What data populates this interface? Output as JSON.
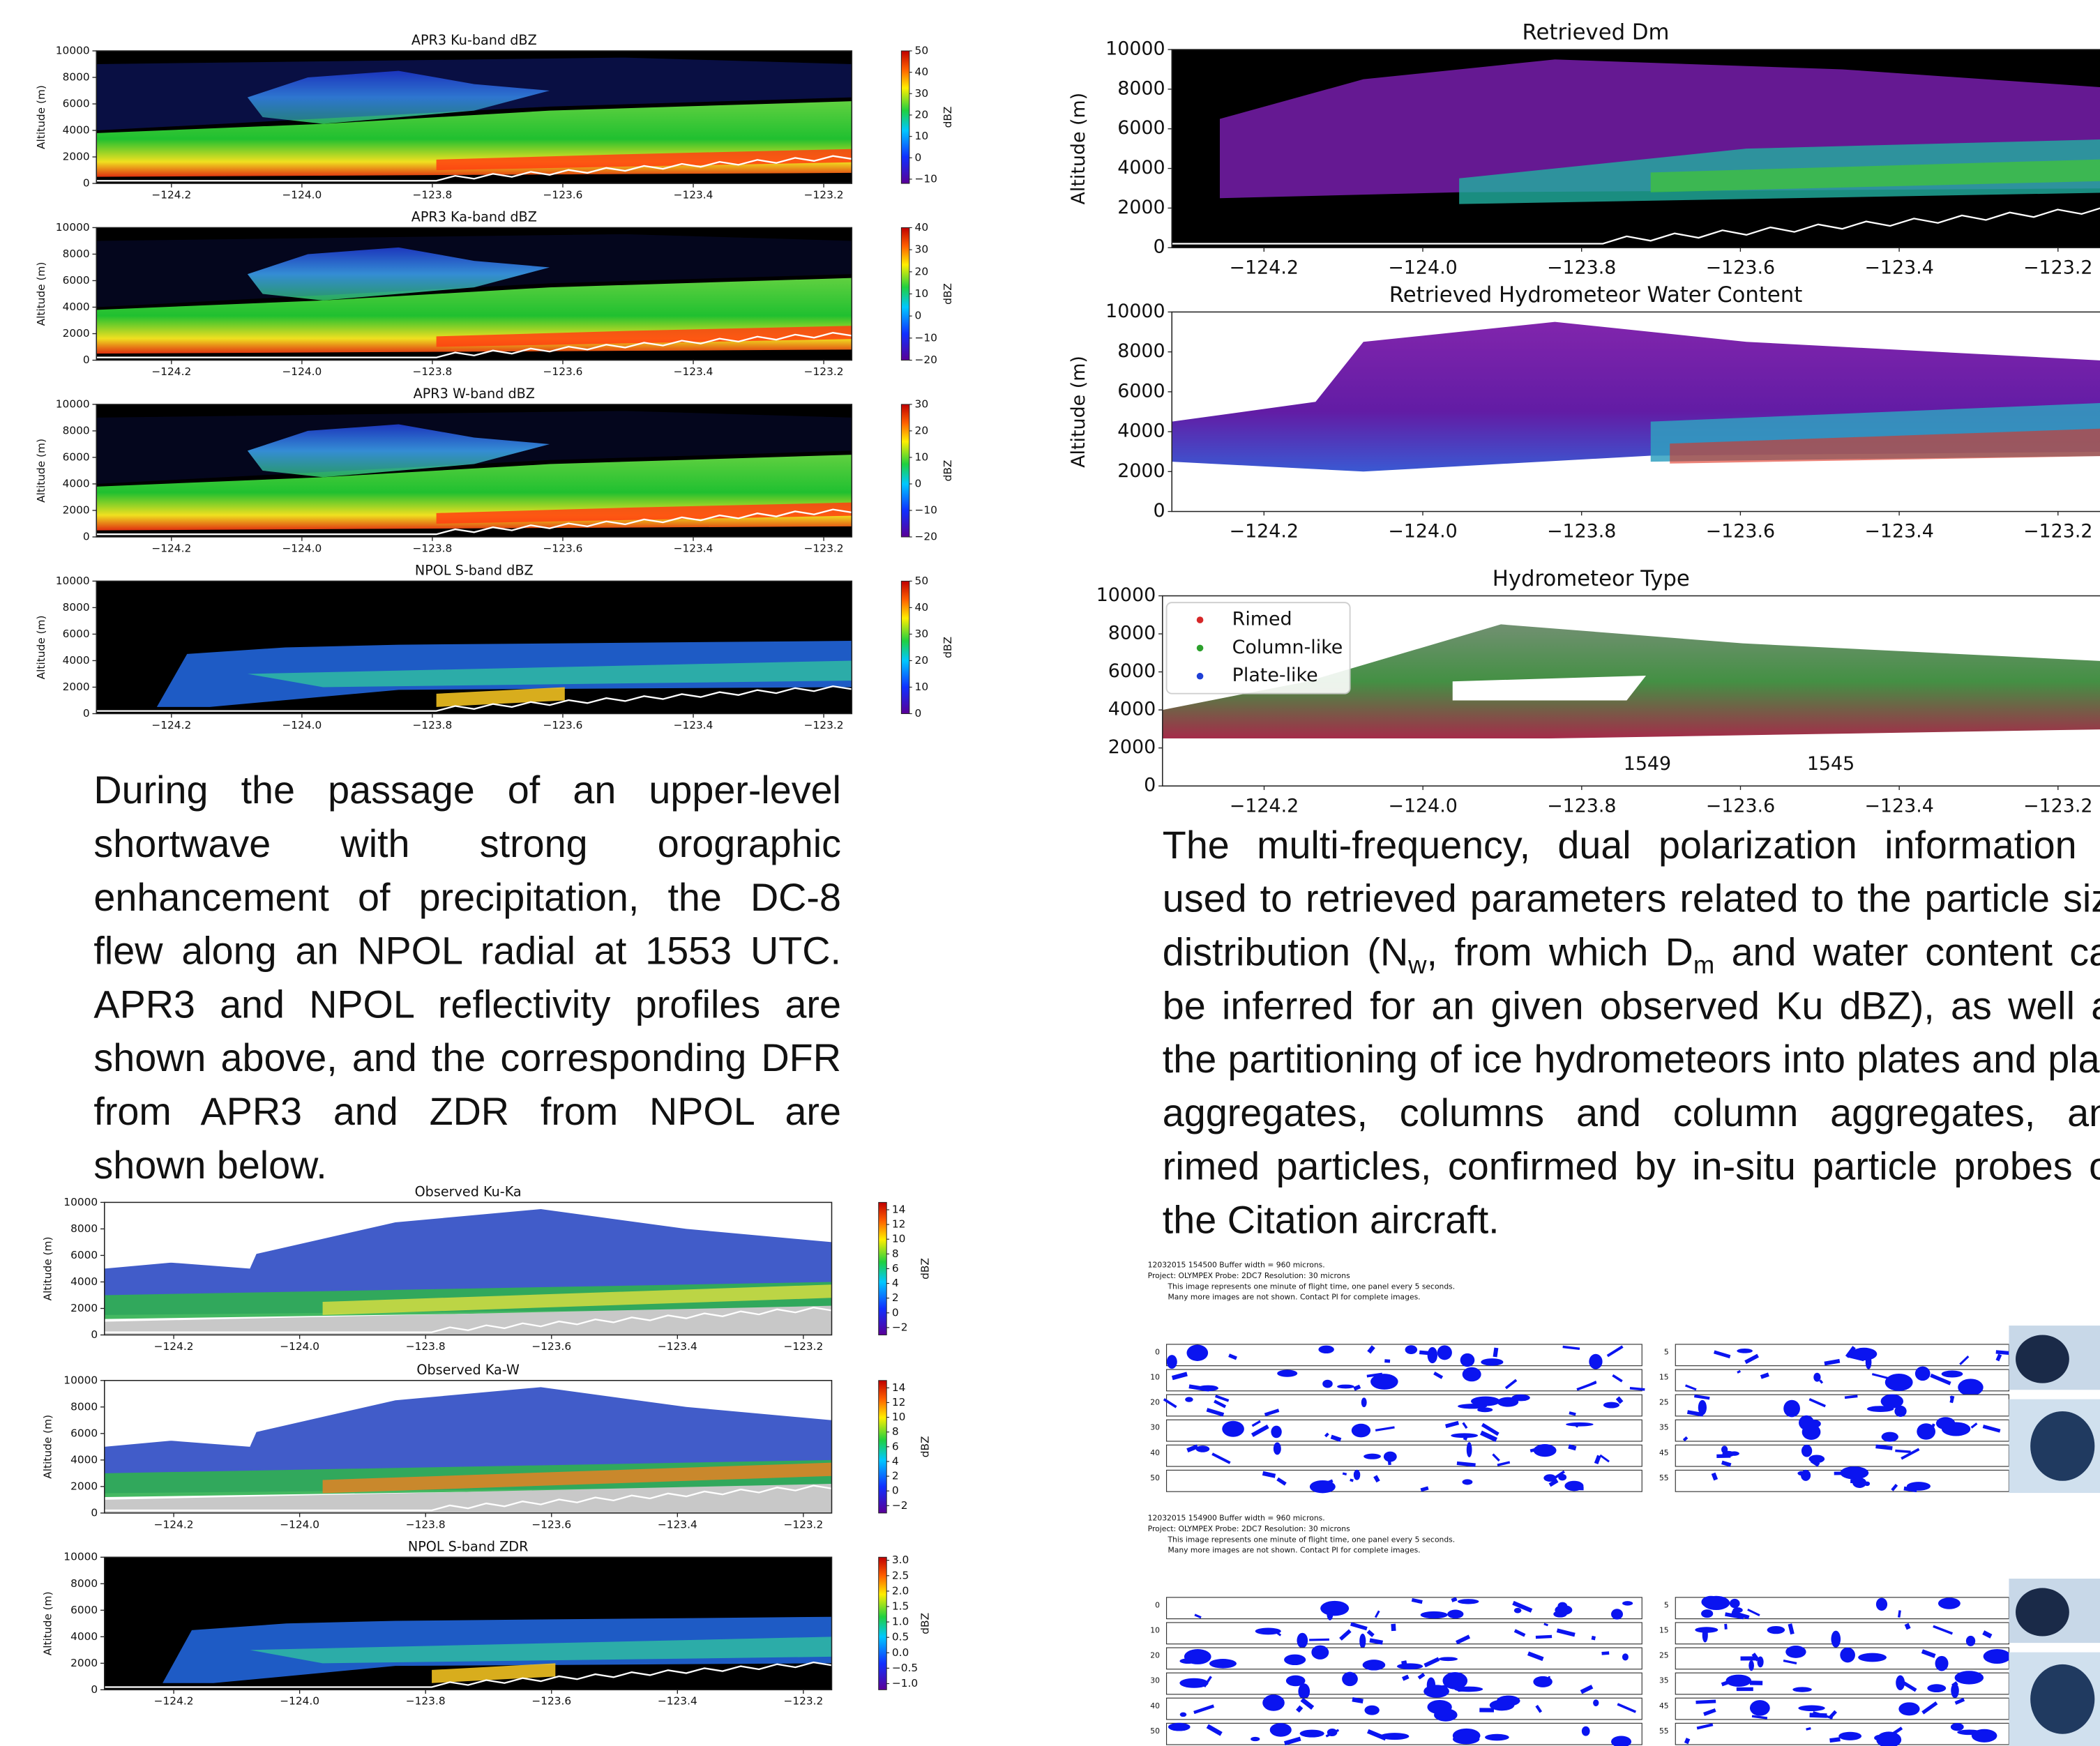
{
  "panels": [
    {
      "title": "APR3 Ku-band dBZ",
      "ylabel": "Altitude (m)",
      "ylim": [
        0,
        10000
      ],
      "yticks": [
        0,
        2000,
        4000,
        6000,
        8000,
        10000
      ],
      "xlim": [
        -124.315,
        -123.157
      ],
      "xticks": [
        {
          "value": -124.2,
          "label": "−124.2"
        },
        {
          "value": -124.0,
          "label": "−124.0"
        },
        {
          "value": -123.8,
          "label": "−123.8"
        },
        {
          "value": -123.6,
          "label": "−123.6"
        },
        {
          "value": -123.4,
          "label": "−123.4"
        },
        {
          "value": -123.2,
          "label": "−123.2"
        }
      ],
      "colorbar": {
        "label": "dBZ",
        "lim": [
          -12,
          50
        ],
        "ticks": [
          {
            "value": -10,
            "label": "−10"
          },
          0,
          10,
          20,
          30,
          40,
          50
        ]
      }
    },
    {
      "title": "APR3 Ka-band dBZ",
      "ylabel": "Altitude (m)",
      "ylim": [
        0,
        10000
      ],
      "yticks": [
        0,
        2000,
        4000,
        6000,
        8000,
        10000
      ],
      "xlim": [
        -124.315,
        -123.157
      ],
      "xticks": [
        {
          "value": -124.2,
          "label": "−124.2"
        },
        {
          "value": -124.0,
          "label": "−124.0"
        },
        {
          "value": -123.8,
          "label": "−123.8"
        },
        {
          "value": -123.6,
          "label": "−123.6"
        },
        {
          "value": -123.4,
          "label": "−123.4"
        },
        {
          "value": -123.2,
          "label": "−123.2"
        }
      ],
      "colorbar": {
        "label": "dBZ",
        "lim": [
          -20,
          40
        ],
        "ticks": [
          {
            "value": -20,
            "label": "−20"
          },
          {
            "value": -10,
            "label": "−10"
          },
          0,
          10,
          20,
          30,
          40
        ]
      }
    },
    {
      "title": "APR3 W-band dBZ",
      "ylabel": "Altitude (m)",
      "ylim": [
        0,
        10000
      ],
      "yticks": [
        0,
        2000,
        4000,
        6000,
        8000,
        10000
      ],
      "xlim": [
        -124.315,
        -123.157
      ],
      "xticks": [
        {
          "value": -124.2,
          "label": "−124.2"
        },
        {
          "value": -124.0,
          "label": "−124.0"
        },
        {
          "value": -123.8,
          "label": "−123.8"
        },
        {
          "value": -123.6,
          "label": "−123.6"
        },
        {
          "value": -123.4,
          "label": "−123.4"
        },
        {
          "value": -123.2,
          "label": "−123.2"
        }
      ],
      "colorbar": {
        "label": "dBZ",
        "lim": [
          -20,
          30
        ],
        "ticks": [
          {
            "value": -20,
            "label": "−20"
          },
          {
            "value": -10,
            "label": "−10"
          },
          0,
          10,
          20,
          30
        ]
      }
    },
    {
      "title": "NPOL S-band dBZ",
      "ylabel": "Altitude (m)",
      "ylim": [
        0,
        10000
      ],
      "yticks": [
        0,
        2000,
        4000,
        6000,
        8000,
        10000
      ],
      "xlim": [
        -124.315,
        -123.157
      ],
      "xticks": [
        {
          "value": -124.2,
          "label": "−124.2"
        },
        {
          "value": -124.0,
          "label": "−124.0"
        },
        {
          "value": -123.8,
          "label": "−123.8"
        },
        {
          "value": -123.6,
          "label": "−123.6"
        },
        {
          "value": -123.4,
          "label": "−123.4"
        },
        {
          "value": -123.2,
          "label": "−123.2"
        }
      ],
      "colorbar": {
        "label": "dBZ",
        "lim": [
          0,
          50
        ],
        "ticks": [
          0,
          10,
          20,
          30,
          40,
          50
        ]
      }
    },
    {
      "title": "Observed Ku-Ka",
      "ylabel": "Altitude (m)",
      "ylim": [
        0,
        10000
      ],
      "yticks": [
        0,
        2000,
        4000,
        6000,
        8000,
        10000
      ],
      "xlim": [
        -124.31,
        -123.155
      ],
      "xticks": [
        {
          "value": -124.2,
          "label": "−124.2"
        },
        {
          "value": -124.0,
          "label": "−124.0"
        },
        {
          "value": -123.8,
          "label": "−123.8"
        },
        {
          "value": -123.6,
          "label": "−123.6"
        },
        {
          "value": -123.4,
          "label": "−123.4"
        },
        {
          "value": -123.2,
          "label": "−123.2"
        }
      ],
      "colorbar": {
        "label": "dBZ",
        "lim": [
          -3,
          15
        ],
        "ticks": [
          {
            "value": -2,
            "label": "−2"
          },
          0,
          2,
          4,
          6,
          8,
          10,
          12,
          14
        ]
      }
    },
    {
      "title": "Observed Ka-W",
      "ylabel": "Altitude (m)",
      "ylim": [
        0,
        10000
      ],
      "yticks": [
        0,
        2000,
        4000,
        6000,
        8000,
        10000
      ],
      "xlim": [
        -124.31,
        -123.155
      ],
      "xticks": [
        {
          "value": -124.2,
          "label": "−124.2"
        },
        {
          "value": -124.0,
          "label": "−124.0"
        },
        {
          "value": -123.8,
          "label": "−123.8"
        },
        {
          "value": -123.6,
          "label": "−123.6"
        },
        {
          "value": -123.4,
          "label": "−123.4"
        },
        {
          "value": -123.2,
          "label": "−123.2"
        }
      ],
      "colorbar": {
        "label": "dBZ",
        "lim": [
          -3,
          15
        ],
        "ticks": [
          {
            "value": -2,
            "label": "−2"
          },
          0,
          2,
          4,
          6,
          8,
          10,
          12,
          14
        ]
      }
    },
    {
      "title": "NPOL S-band ZDR",
      "ylabel": "Altitude (m)",
      "ylim": [
        0,
        10000
      ],
      "yticks": [
        0,
        2000,
        4000,
        6000,
        8000,
        10000
      ],
      "xlim": [
        -124.31,
        -123.155
      ],
      "xticks": [
        {
          "value": -124.2,
          "label": "−124.2"
        },
        {
          "value": -124.0,
          "label": "−124.0"
        },
        {
          "value": -123.8,
          "label": "−123.8"
        },
        {
          "value": -123.6,
          "label": "−123.6"
        },
        {
          "value": -123.4,
          "label": "−123.4"
        },
        {
          "value": -123.2,
          "label": "−123.2"
        }
      ],
      "colorbar": {
        "label": "dBZ",
        "lim": [
          -1.2,
          3.1
        ],
        "ticks": [
          {
            "value": -1.0,
            "label": "−1.0"
          },
          {
            "value": -0.5,
            "label": "−0.5"
          },
          {
            "value": 0.0,
            "label": "0.0"
          },
          {
            "value": 0.5,
            "label": "0.5"
          },
          {
            "value": 1.0,
            "label": "1.0"
          },
          {
            "value": 1.5,
            "label": "1.5"
          },
          {
            "value": 2.0,
            "label": "2.0"
          },
          {
            "value": 2.5,
            "label": "2.5"
          },
          {
            "value": 3.0,
            "label": "3.0"
          }
        ]
      }
    },
    {
      "title": "Retrieved Dm",
      "ylabel": "Altitude (m)",
      "ylim": [
        0,
        10000
      ],
      "yticks": [
        0,
        2000,
        4000,
        6000,
        8000,
        10000
      ],
      "xlim": [
        -124.316,
        -123.11
      ],
      "xticks": [
        {
          "value": -124.2,
          "label": "−124.2"
        },
        {
          "value": -124.0,
          "label": "−124.0"
        },
        {
          "value": -123.8,
          "label": "−123.8"
        },
        {
          "value": -123.6,
          "label": "−123.6"
        },
        {
          "value": -123.4,
          "label": "−123.4"
        },
        {
          "value": -123.2,
          "label": "−123.2"
        }
      ]
    },
    {
      "title": "Retrieved Hydrometeor Water Content",
      "ylabel": "Altitude (m)",
      "ylim": [
        0,
        10000
      ],
      "yticks": [
        0,
        2000,
        4000,
        6000,
        8000,
        10000
      ],
      "xlim": [
        -124.316,
        -123.11
      ],
      "xticks": [
        {
          "value": -124.2,
          "label": "−124.2"
        },
        {
          "value": -124.0,
          "label": "−124.0"
        },
        {
          "value": -123.8,
          "label": "−123.8"
        },
        {
          "value": -123.6,
          "label": "−123.6"
        },
        {
          "value": -123.4,
          "label": "−123.4"
        },
        {
          "value": -123.2,
          "label": "−123.2"
        }
      ]
    },
    {
      "title": "Hydrometeor Type",
      "ylim": [
        0,
        10000
      ],
      "yticks": [
        0,
        2000,
        4000,
        6000,
        8000,
        10000
      ],
      "xlim": [
        -124.328,
        -123.11
      ],
      "xticks": [
        {
          "value": -124.2,
          "label": "−124.2"
        },
        {
          "value": -124.0,
          "label": "−124.0"
        },
        {
          "value": -123.8,
          "label": "−123.8"
        },
        {
          "value": -123.6,
          "label": "−123.6"
        },
        {
          "value": -123.4,
          "label": "−123.4"
        },
        {
          "value": -123.2,
          "label": "−123.2"
        }
      ],
      "legend": [
        {
          "name": "Rimed",
          "color": "#d62728"
        },
        {
          "name": "Column-like",
          "color": "#2ca02c"
        },
        {
          "name": "Plate-like",
          "color": "#1f3fd6"
        }
      ],
      "annotations": [
        "1549",
        "1545"
      ]
    }
  ],
  "left_paragraph": "During the passage of an upper-level shortwave with strong orographic enhancement of precipitation, the DC-8 flew along an NPOL radial at 1553 UTC. APR3 and NPOL reflectivity profiles are shown above, and the corresponding DFR from APR3 and ZDR from NPOL are shown below.",
  "right_paragraph": [
    "The multi-frequency, dual polarization information is used to retrieved parameters related to the particle size distribution (N",
    "w",
    ", from which D",
    "m",
    " and water content can be inferred for an given observed Ku dBZ), as well as the partitioning of ice hydrometeors into plates and plate aggregates, columns and column aggregates, and rimed particles, confirmed by in-situ particle probes on the Citation aircraft."
  ],
  "probe_images": [
    {
      "header": [
        "12032015 154500   Buffer width = 960 microns.",
        "Project: OLYMPEX   Probe: 2DC7   Resolution: 30 microns",
        "This image represents one minute of flight time, one panel every 5 seconds.",
        "Many more images are not shown.  Contact PI for complete images."
      ],
      "row_labels": [
        [
          0,
          10,
          20,
          30,
          40,
          50
        ],
        [
          5,
          15,
          25,
          35,
          45,
          55
        ]
      ]
    },
    {
      "header": [
        "12032015 154900   Buffer width = 960 microns.",
        "Project: OLYMPEX   Probe: 2DC7   Resolution: 30 microns",
        "This image represents one minute of flight time, one panel every 5 seconds.",
        "Many more images are not shown.  Contact PI for complete images."
      ],
      "row_labels": [
        [
          0,
          10,
          20,
          30,
          40,
          50
        ],
        [
          5,
          15,
          25,
          35,
          45,
          55
        ]
      ]
    }
  ]
}
